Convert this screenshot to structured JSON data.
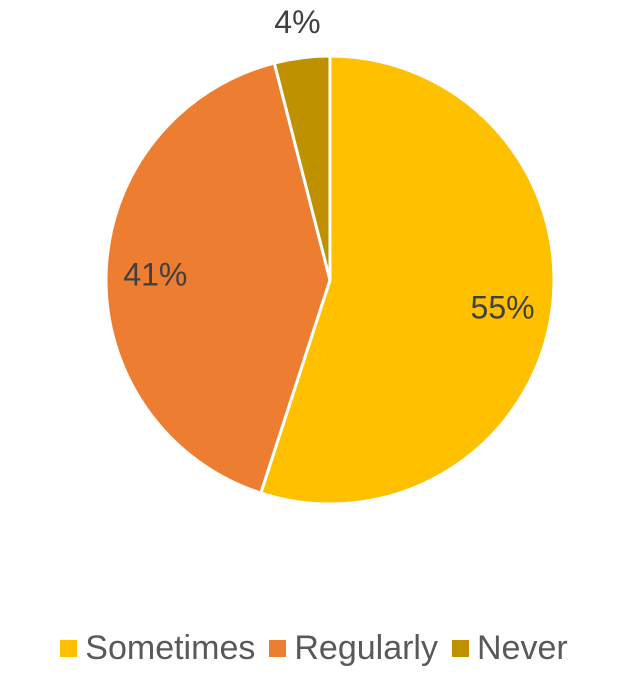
{
  "chart_data": {
    "type": "pie",
    "title": "",
    "start_angle_deg": 0,
    "direction": "clockwise",
    "slices": [
      {
        "label": "Sometimes",
        "value": 55,
        "display": "55%",
        "color": "#FFC000"
      },
      {
        "label": "Regularly",
        "value": 41,
        "display": "41%",
        "color": "#ED7D31"
      },
      {
        "label": "Never",
        "value": 4,
        "display": "4%",
        "color": "#BF9000"
      }
    ],
    "legend_position": "bottom"
  }
}
